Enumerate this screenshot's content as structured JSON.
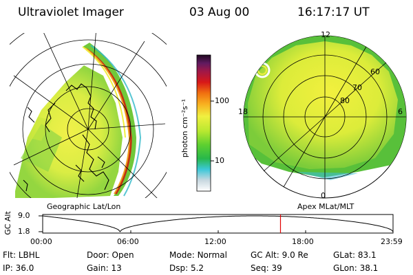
{
  "header": {
    "instrument": "Ultraviolet Imager",
    "date": "03 Aug 00",
    "time": "16:17:17 UT"
  },
  "left_panel": {
    "caption": "Geographic Lat/Lon"
  },
  "right_panel": {
    "caption": "Apex MLat/MLT",
    "mlt_labels": {
      "top": "12",
      "left": "18",
      "right": "6",
      "bottom": "0"
    },
    "lat_labels": [
      "60",
      "70",
      "80"
    ]
  },
  "colorbar": {
    "unit_label": "photon cm⁻²s⁻¹",
    "ticks": [
      "100",
      "10"
    ],
    "scale": "log"
  },
  "orbit": {
    "ylabel": "GC Alt",
    "y_ticks": [
      "9.0",
      "1.8"
    ],
    "x_ticks": [
      "00:00",
      "06:00",
      "12:00",
      "18:00",
      "23:59"
    ],
    "current_time_marker_hours": 16.29
  },
  "status": {
    "filter": {
      "label": "Flt:",
      "value": "LBHL"
    },
    "ip": {
      "label": "IP:",
      "value": "36.0"
    },
    "door": {
      "label": "Door:",
      "value": "Open"
    },
    "gain": {
      "label": "Gain:",
      "value": "13"
    },
    "mode": {
      "label": "Mode:",
      "value": "Normal"
    },
    "dsp": {
      "label": "Dsp:",
      "value": "5.2"
    },
    "gc_alt": {
      "label": "GC Alt:",
      "value": "9.0 Re"
    },
    "seq": {
      "label": "Seq:",
      "value": "39"
    },
    "glat": {
      "label": "GLat:",
      "value": "83.1"
    },
    "glon": {
      "label": "GLon:",
      "value": "38.1"
    }
  }
}
